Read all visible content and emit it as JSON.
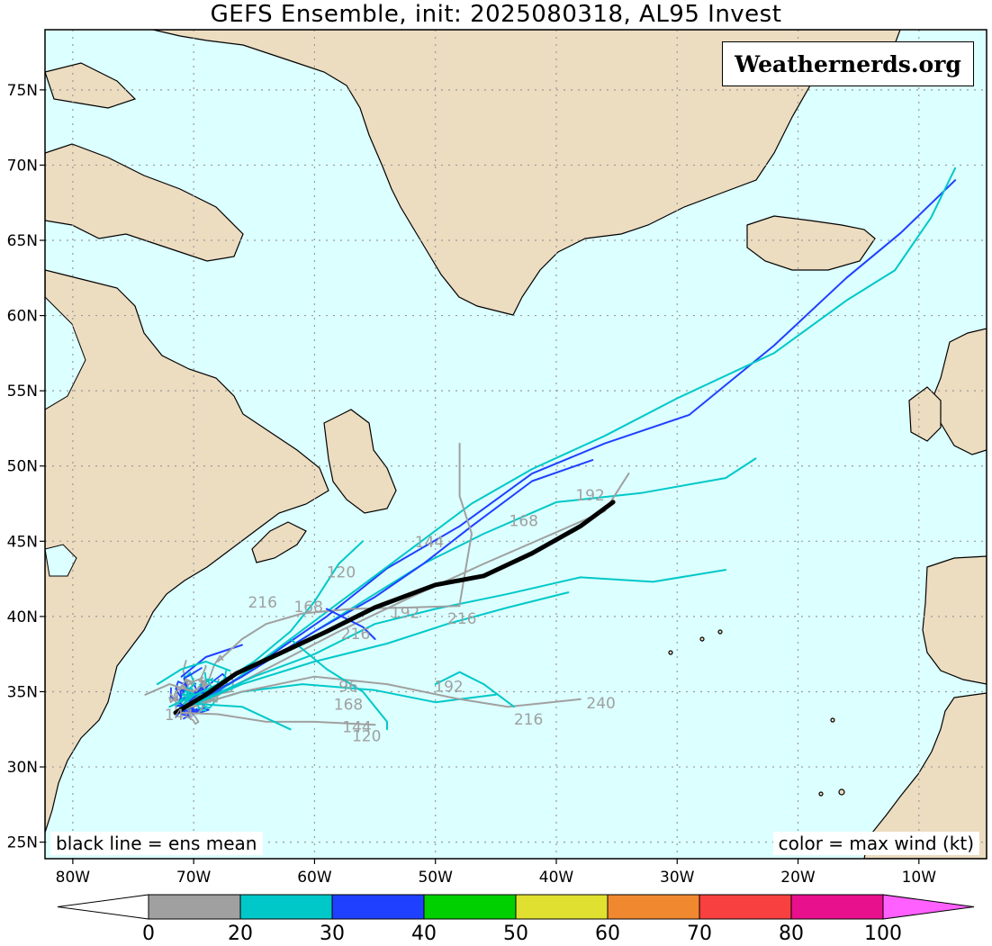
{
  "title": "GEFS Ensemble, init: 2025080318, AL95 Invest",
  "logo": "Weathernerds.org",
  "legend_left": "black line = ens mean",
  "legend_right": "color = max wind (kt)",
  "map_extent": {
    "lon": [
      -82.3,
      -4.4
    ],
    "lat": [
      23.9,
      79.0
    ]
  },
  "lat_labels": [
    "75N",
    "70N",
    "65N",
    "60N",
    "55N",
    "50N",
    "45N",
    "40N",
    "35N",
    "30N",
    "25N"
  ],
  "lat_values": [
    75,
    70,
    65,
    60,
    55,
    50,
    45,
    40,
    35,
    30,
    25
  ],
  "lon_labels": [
    "80W",
    "70W",
    "60W",
    "50W",
    "40W",
    "30W",
    "20W",
    "10W"
  ],
  "lon_values": [
    -80,
    -70,
    -60,
    -50,
    -40,
    -30,
    -20,
    -10
  ],
  "colorbar": {
    "labels": [
      "0",
      "20",
      "30",
      "40",
      "50",
      "60",
      "70",
      "80",
      "100"
    ],
    "colors": [
      "#a0a0a0",
      "#00c8c8",
      "#2040ff",
      "#00d000",
      "#e0e030",
      "#f08830",
      "#f84040",
      "#e8108c"
    ],
    "under_color": "#ffffff",
    "over_color": "#ff60ff"
  },
  "colors": {
    "ocean": "#dcffff",
    "land": "#ecdcc0",
    "grid": "#9a9a9a",
    "mean": "#000000"
  },
  "ensemble_mean": [
    [
      -71.5,
      33.6
    ],
    [
      -69,
      34.8
    ],
    [
      -66.5,
      36.2
    ],
    [
      -63,
      37.5
    ],
    [
      -59,
      39.0
    ],
    [
      -55,
      40.6
    ],
    [
      -50,
      42.1
    ],
    [
      -46,
      42.7
    ],
    [
      -42,
      44.2
    ],
    [
      -38,
      46.0
    ],
    [
      -35.3,
      47.6
    ]
  ],
  "members": [
    {
      "color": "#2040ff",
      "points": [
        [
          -71.5,
          33.6
        ],
        [
          -68,
          35
        ],
        [
          -63.5,
          37.5
        ],
        [
          -59,
          40
        ],
        [
          -54,
          43.2
        ],
        [
          -48,
          46
        ],
        [
          -42,
          49.5
        ],
        [
          -36,
          51.5
        ],
        [
          -29,
          53.4
        ],
        [
          -22,
          58
        ],
        [
          -16,
          62.5
        ],
        [
          -11.5,
          65.5
        ],
        [
          -7,
          69
        ]
      ]
    },
    {
      "color": "#00c8c8",
      "points": [
        [
          -71.5,
          33.6
        ],
        [
          -67,
          35.5
        ],
        [
          -62,
          38.5
        ],
        [
          -57,
          41.5
        ],
        [
          -52,
          44.5
        ],
        [
          -47,
          47.5
        ],
        [
          -42,
          49.8
        ],
        [
          -36,
          52
        ],
        [
          -30,
          54.5
        ],
        [
          -22,
          57.5
        ],
        [
          -16,
          61
        ],
        [
          -12,
          63
        ],
        [
          -9,
          66.5
        ],
        [
          -7,
          69.8
        ]
      ]
    },
    {
      "color": "#00c8c8",
      "points": [
        [
          -71,
          33.8
        ],
        [
          -66,
          36
        ],
        [
          -61,
          38.5
        ],
        [
          -56,
          41
        ],
        [
          -51,
          43.5
        ],
        [
          -46,
          45.5
        ],
        [
          -40,
          47.6
        ],
        [
          -33,
          48.2
        ],
        [
          -26,
          49.2
        ],
        [
          -23.5,
          50.5
        ]
      ]
    },
    {
      "color": "#2040ff",
      "points": [
        [
          -71,
          33.8
        ],
        [
          -66,
          36
        ],
        [
          -60,
          39
        ],
        [
          -55,
          41.3
        ],
        [
          -51,
          43.5
        ],
        [
          -47,
          46
        ],
        [
          -42,
          49
        ],
        [
          -37,
          50.4
        ]
      ]
    },
    {
      "color": "#a0a0a0",
      "points": [
        [
          -70,
          34
        ],
        [
          -64,
          36.5
        ],
        [
          -58,
          39
        ],
        [
          -52,
          41.3
        ],
        [
          -46,
          43.5
        ],
        [
          -40,
          45.6
        ],
        [
          -36,
          47
        ],
        [
          -34,
          49.5
        ]
      ]
    },
    {
      "color": "#00c8c8",
      "points": [
        [
          -71,
          33.8
        ],
        [
          -65,
          36
        ],
        [
          -60,
          37.5
        ],
        [
          -55,
          39.5
        ],
        [
          -50,
          40.5
        ],
        [
          -44,
          41.5
        ],
        [
          -38,
          42.6
        ],
        [
          -32,
          42.3
        ],
        [
          -26,
          43.1
        ]
      ]
    },
    {
      "color": "#00c8c8",
      "points": [
        [
          -71,
          33.8
        ],
        [
          -66,
          35.5
        ],
        [
          -60,
          37
        ],
        [
          -54,
          38.2
        ],
        [
          -49,
          39.5
        ],
        [
          -44,
          40.6
        ],
        [
          -39,
          41.6
        ]
      ]
    },
    {
      "color": "#00c8c8",
      "points": [
        [
          -71,
          33.8
        ],
        [
          -66,
          35
        ],
        [
          -61,
          35.5
        ],
        [
          -55,
          35.1
        ],
        [
          -50,
          34.3
        ],
        [
          -45,
          34.8
        ]
      ]
    },
    {
      "color": "#a0a0a0",
      "points": [
        [
          -71,
          33.8
        ],
        [
          -66,
          35
        ],
        [
          -60,
          36
        ],
        [
          -54,
          35.5
        ],
        [
          -48,
          34.5
        ],
        [
          -44,
          34
        ],
        [
          -38,
          34.5
        ]
      ]
    },
    {
      "color": "#00c8c8",
      "points": [
        [
          -72,
          34
        ],
        [
          -68,
          35.5
        ],
        [
          -65,
          37
        ],
        [
          -62,
          39
        ],
        [
          -60,
          41
        ],
        [
          -58,
          43.5
        ],
        [
          -56,
          45
        ]
      ]
    },
    {
      "color": "#a0a0a0",
      "points": [
        [
          -71,
          33.6
        ],
        [
          -68,
          33.5
        ],
        [
          -64,
          33
        ],
        [
          -60,
          33
        ],
        [
          -55,
          32.8
        ]
      ]
    },
    {
      "color": "#00c8c8",
      "points": [
        [
          -70,
          34.2
        ],
        [
          -66,
          34
        ],
        [
          -62,
          32.5
        ]
      ]
    },
    {
      "color": "#2040ff",
      "points": [
        [
          -71,
          36
        ],
        [
          -69,
          37.3
        ],
        [
          -66,
          38.1
        ]
      ]
    },
    {
      "color": "#00c8c8",
      "points": [
        [
          -73,
          35.5
        ],
        [
          -71,
          36.5
        ],
        [
          -69,
          37
        ],
        [
          -67,
          36.4
        ]
      ]
    },
    {
      "color": "#a0a0a0",
      "points": [
        [
          -74,
          34.8
        ],
        [
          -72,
          35.5
        ],
        [
          -70,
          35
        ]
      ]
    },
    {
      "color": "#a0a0a0",
      "points": [
        [
          -68,
          37
        ],
        [
          -66,
          38.5
        ],
        [
          -64,
          39.5
        ],
        [
          -61,
          40.2
        ],
        [
          -57,
          40.5
        ],
        [
          -52,
          40.6
        ],
        [
          -48,
          40.7
        ]
      ]
    },
    {
      "color": "#a0a0a0",
      "points": [
        [
          -48,
          40.8
        ],
        [
          -47,
          45.5
        ],
        [
          -48,
          48
        ],
        [
          -48,
          51.5
        ]
      ]
    },
    {
      "color": "#00c8c8",
      "points": [
        [
          -50,
          35.5
        ],
        [
          -48,
          36.3
        ],
        [
          -46,
          35.5
        ],
        [
          -43.5,
          34
        ]
      ]
    },
    {
      "color": "#00c8c8",
      "points": [
        [
          -62,
          38.5
        ],
        [
          -59,
          36.5
        ],
        [
          -56,
          35
        ],
        [
          -54,
          33
        ],
        [
          -54,
          32.5
        ]
      ]
    },
    {
      "color": "#2040ff",
      "points": [
        [
          -59,
          40.5
        ],
        [
          -56,
          39.3
        ],
        [
          -55,
          38.5
        ]
      ]
    }
  ],
  "hour_labels": [
    {
      "text": "216",
      "lon": -64.3,
      "lat": 40.6
    },
    {
      "text": "120",
      "lon": -57.8,
      "lat": 42.6
    },
    {
      "text": "168",
      "lon": -60.5,
      "lat": 40.3
    },
    {
      "text": "192",
      "lon": -52.5,
      "lat": 39.9
    },
    {
      "text": "216",
      "lon": -47.8,
      "lat": 39.5
    },
    {
      "text": "216",
      "lon": -56.6,
      "lat": 38.5
    },
    {
      "text": "168",
      "lon": -42.7,
      "lat": 46.0
    },
    {
      "text": "192",
      "lon": -37.2,
      "lat": 47.7
    },
    {
      "text": "144",
      "lon": -50.5,
      "lat": 44.6
    },
    {
      "text": "192",
      "lon": -48.9,
      "lat": 35.0
    },
    {
      "text": "168",
      "lon": -57.2,
      "lat": 33.8
    },
    {
      "text": "216",
      "lon": -42.3,
      "lat": 32.8
    },
    {
      "text": "240",
      "lon": -36.3,
      "lat": 33.9
    },
    {
      "text": "144",
      "lon": -56.5,
      "lat": 32.3
    },
    {
      "text": "120",
      "lon": -55.7,
      "lat": 31.7
    },
    {
      "text": "96",
      "lon": -57.2,
      "lat": 35.0
    },
    {
      "text": "144",
      "lon": -71.2,
      "lat": 33.1
    }
  ]
}
